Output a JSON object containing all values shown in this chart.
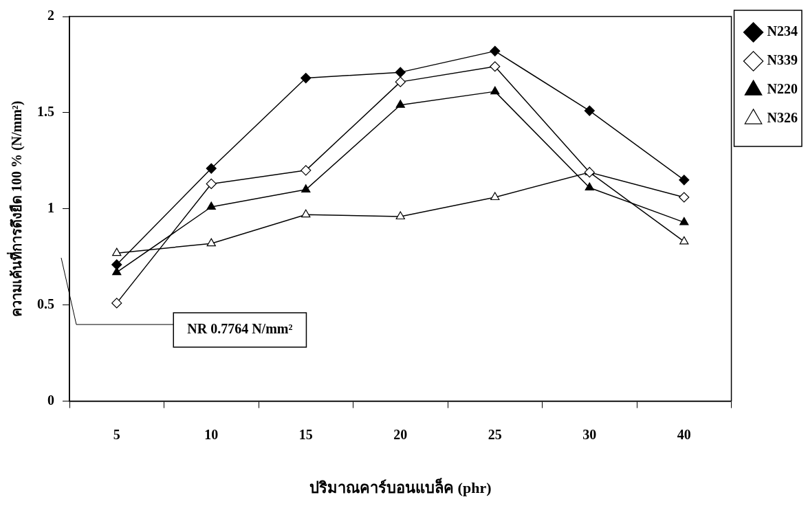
{
  "chart_data": {
    "type": "line",
    "xlabel": "ปริมาณคาร์บอนแบล็ค (phr)",
    "ylabel": "ความเค้นที่การดึงยืด 100 % (N/mm²)",
    "categories": [
      "5",
      "10",
      "15",
      "20",
      "25",
      "30",
      "40"
    ],
    "series": [
      {
        "name": "N234",
        "color": "#000000",
        "marker": "diamond",
        "values": [
          0.71,
          1.21,
          1.68,
          1.71,
          1.82,
          1.51,
          1.15
        ]
      },
      {
        "name": "N339",
        "color": "#ffffff",
        "marker": "diamond",
        "values": [
          0.51,
          1.13,
          1.2,
          1.66,
          1.74,
          1.19,
          1.06
        ]
      },
      {
        "name": "N220",
        "color": "#000000",
        "marker": "triangle",
        "values": [
          0.67,
          1.01,
          1.1,
          1.54,
          1.61,
          1.11,
          0.93
        ]
      },
      {
        "name": "N326",
        "color": "#ffffff",
        "marker": "triangle",
        "values": [
          0.77,
          0.82,
          0.97,
          0.96,
          1.06,
          1.19,
          0.83
        ]
      }
    ],
    "ylim": [
      0,
      2
    ],
    "yticks": [
      0,
      0.5,
      1,
      1.5,
      2
    ],
    "grid": false,
    "legend": "right",
    "annotations": [
      "NR 0.7764 N/mm²"
    ]
  }
}
